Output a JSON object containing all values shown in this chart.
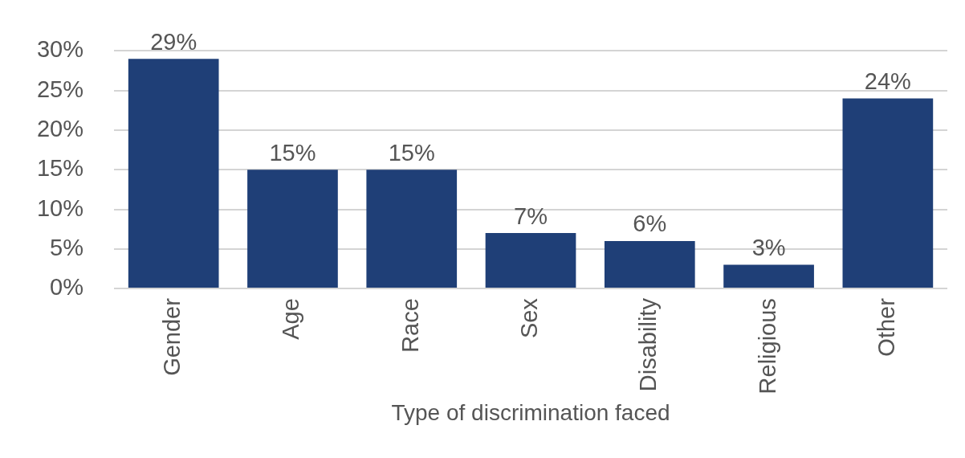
{
  "chart_data": {
    "type": "bar",
    "xlabel": "Type of discrimination faced",
    "categories": [
      "Gender",
      "Age",
      "Race",
      "Sex",
      "Disability",
      "Religious",
      "Other"
    ],
    "values": [
      29,
      15,
      15,
      7,
      6,
      3,
      24
    ],
    "value_labels": [
      "29%",
      "15%",
      "15%",
      "7%",
      "6%",
      "3%",
      "24%"
    ],
    "color": "#1f3f77",
    "ylim": [
      0,
      30
    ],
    "yticks": [
      {
        "value": 0,
        "label": "0%"
      },
      {
        "value": 5,
        "label": "5%"
      },
      {
        "value": 10,
        "label": "10%"
      },
      {
        "value": 15,
        "label": "15%"
      },
      {
        "value": 20,
        "label": "20%"
      },
      {
        "value": 25,
        "label": "25%"
      },
      {
        "value": 30,
        "label": "30%"
      }
    ],
    "grid": "y",
    "legend": false
  }
}
